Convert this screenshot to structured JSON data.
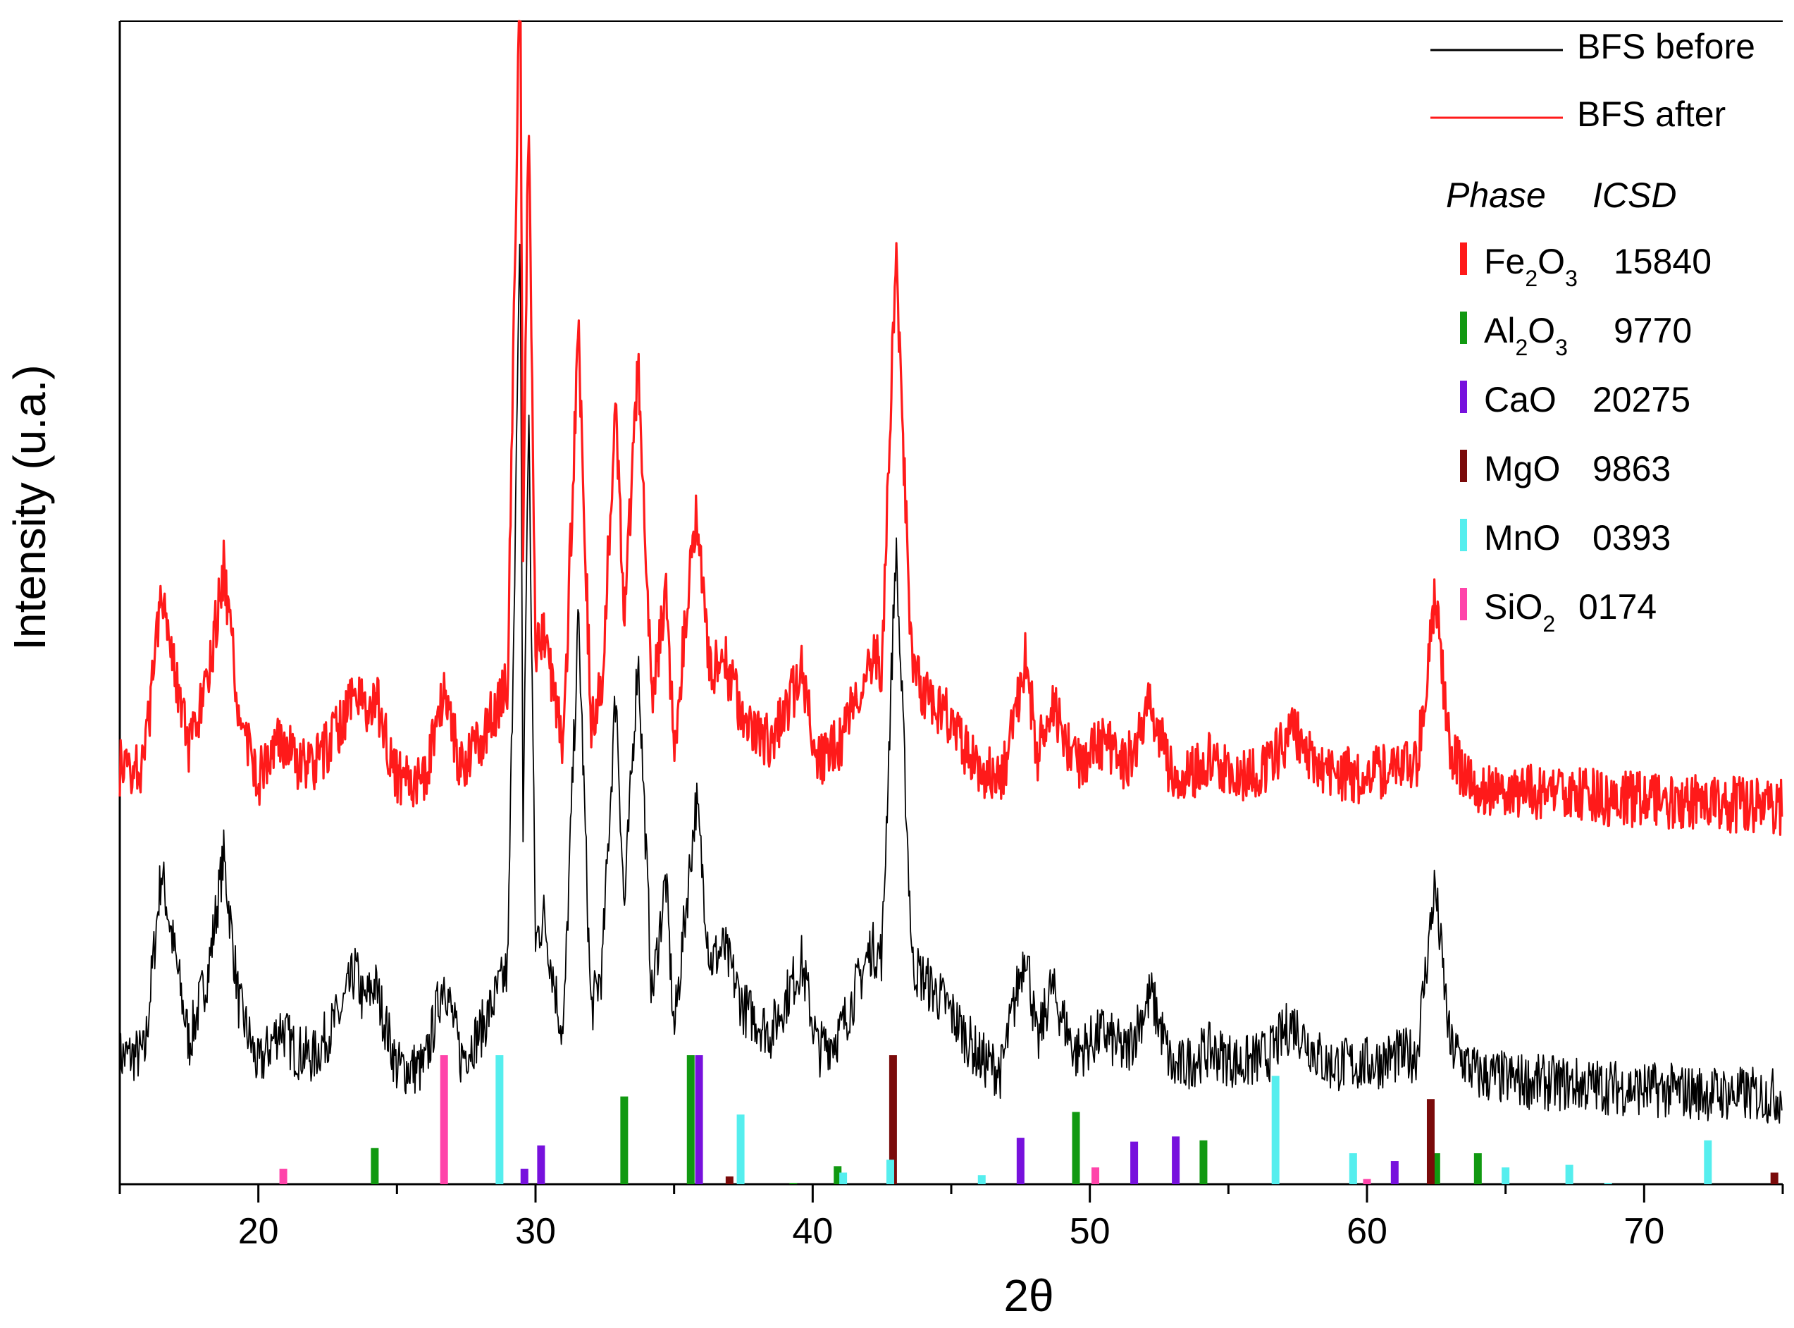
{
  "chart_data": {
    "type": "line",
    "xlabel": "2θ",
    "ylabel": "Intensity (u.a.)",
    "xlim": [
      15,
      75
    ],
    "xticks": [
      20,
      30,
      40,
      50,
      60,
      70
    ],
    "y_ticks_shown": false,
    "legend_position": "top-right",
    "series": [
      {
        "name": "BFS before",
        "color": "#000000",
        "offset": 0,
        "x": [
          15,
          15.9,
          16.5,
          17.5,
          18.2,
          18.75,
          19.3,
          20,
          20.8,
          21.3,
          22,
          23,
          23.5,
          23.8,
          24.2,
          25,
          26,
          26.7,
          27.3,
          28,
          29,
          29.45,
          29.55,
          29.75,
          30,
          30.3,
          31,
          31.55,
          32,
          32.4,
          32.9,
          33.2,
          33.7,
          34.2,
          34.7,
          35,
          35.8,
          36.3,
          36.8,
          37.5,
          38.5,
          39.6,
          40.2,
          41,
          42.1,
          42.5,
          43,
          43.6,
          44.8,
          46,
          46.8,
          47.7,
          48.1,
          48.6,
          49.5,
          50.5,
          51.3,
          52.2,
          53,
          54.3,
          55.5,
          56.5,
          57.3,
          58.5,
          60,
          61,
          61.8,
          62.45,
          63,
          64,
          66,
          68,
          70,
          72,
          75
        ],
        "y": [
          15,
          16,
          68,
          19,
          40,
          72,
          30,
          12,
          24,
          17,
          15,
          28,
          40,
          30,
          36,
          12,
          12,
          38,
          15,
          22,
          40,
          250,
          78,
          200,
          48,
          55,
          20,
          140,
          28,
          40,
          120,
          56,
          130,
          32,
          66,
          22,
          88,
          42,
          46,
          29,
          22,
          42,
          17,
          22,
          46,
          44,
          160,
          41,
          30,
          15,
          11,
          47,
          18,
          35,
          16,
          22,
          16,
          33,
          11,
          17,
          13,
          16,
          25,
          13,
          13,
          15,
          16,
          64,
          18,
          10,
          8,
          7,
          6,
          5,
          4
        ]
      },
      {
        "name": "BFS after",
        "color": "#ff1a1a",
        "offset": 82,
        "x": [
          15,
          15.9,
          16.5,
          17.5,
          18.2,
          18.75,
          19.3,
          20,
          20.8,
          21.3,
          22,
          23,
          23.5,
          23.8,
          24.2,
          25,
          26,
          26.7,
          27.3,
          28,
          29,
          29.45,
          29.55,
          29.75,
          30,
          30.3,
          31,
          31.55,
          32,
          32.4,
          32.9,
          33.2,
          33.7,
          34.2,
          34.7,
          35,
          35.8,
          36.3,
          36.8,
          37.5,
          38.5,
          39.6,
          40.2,
          41,
          42.1,
          42.5,
          43,
          43.6,
          44.8,
          46,
          46.8,
          47.7,
          48.1,
          48.6,
          49.5,
          50.5,
          51.3,
          52.2,
          53,
          54.3,
          55.5,
          56.5,
          57.3,
          58.5,
          60,
          61,
          61.8,
          62.45,
          63,
          64,
          66,
          68,
          70,
          72,
          75
        ],
        "y": [
          15,
          16,
          68,
          19,
          40,
          72,
          30,
          12,
          24,
          17,
          15,
          28,
          40,
          30,
          36,
          12,
          12,
          38,
          15,
          22,
          40,
          250,
          78,
          200,
          48,
          55,
          20,
          140,
          28,
          40,
          120,
          56,
          130,
          32,
          66,
          22,
          88,
          42,
          46,
          29,
          22,
          42,
          17,
          22,
          46,
          44,
          160,
          41,
          30,
          15,
          11,
          47,
          18,
          35,
          16,
          22,
          16,
          33,
          11,
          17,
          13,
          16,
          25,
          13,
          13,
          15,
          16,
          64,
          18,
          10,
          8,
          7,
          6,
          5,
          4
        ]
      }
    ],
    "reference_phases": {
      "header": [
        "Phase",
        "ICSD"
      ],
      "items": [
        {
          "phase": "Fe",
          "sub1": "2",
          "mid": "O",
          "sub2": "3",
          "icsd": "15840",
          "color": "#ff1a1a",
          "lines": []
        },
        {
          "phase": "Al",
          "sub1": "2",
          "mid": "O",
          "sub2": "3",
          "icsd": "9770",
          "color": "#119911",
          "lines": [
            [
              24.2,
              28
            ],
            [
              33.2,
              68
            ],
            [
              35.6,
              100
            ],
            [
              39.3,
              1
            ],
            [
              40.9,
              14
            ],
            [
              49.5,
              56
            ],
            [
              54.1,
              34
            ],
            [
              62.5,
              24
            ],
            [
              64,
              24
            ]
          ]
        },
        {
          "phase": "CaO",
          "sub1": "",
          "mid": "",
          "sub2": "",
          "icsd": "20275",
          "color": "#7711dd",
          "lines": [
            [
              29.6,
              12
            ],
            [
              30.2,
              30
            ],
            [
              35.9,
              100
            ],
            [
              47.5,
              36
            ],
            [
              51.6,
              33
            ],
            [
              53.1,
              37
            ],
            [
              61,
              18
            ]
          ]
        },
        {
          "phase": "MgO",
          "sub1": "",
          "mid": "",
          "sub2": "",
          "icsd": "9863",
          "color": "#7a0a0a",
          "lines": [
            [
              37,
              6
            ],
            [
              42.9,
              100
            ],
            [
              62.3,
              66
            ],
            [
              74.7,
              9
            ]
          ]
        },
        {
          "phase": "MnO",
          "sub1": "",
          "mid": "",
          "sub2": "",
          "icsd": "0393",
          "color": "#55eeee",
          "lines": [
            [
              28.7,
              100
            ],
            [
              37.4,
              54
            ],
            [
              41.1,
              9
            ],
            [
              42.8,
              19
            ],
            [
              46.1,
              7
            ],
            [
              56.7,
              84
            ],
            [
              59.5,
              24
            ],
            [
              65,
              13
            ],
            [
              67.3,
              15
            ],
            [
              68.7,
              1
            ],
            [
              72.3,
              34
            ]
          ]
        },
        {
          "phase": "Si",
          "sub1": "",
          "mid": "O",
          "sub2": "2",
          "icsd": "0174",
          "color": "#ff44aa",
          "lines": [
            [
              20.9,
              12
            ],
            [
              26.7,
              100
            ],
            [
              50.2,
              13
            ],
            [
              60.0,
              4
            ]
          ]
        }
      ]
    }
  }
}
